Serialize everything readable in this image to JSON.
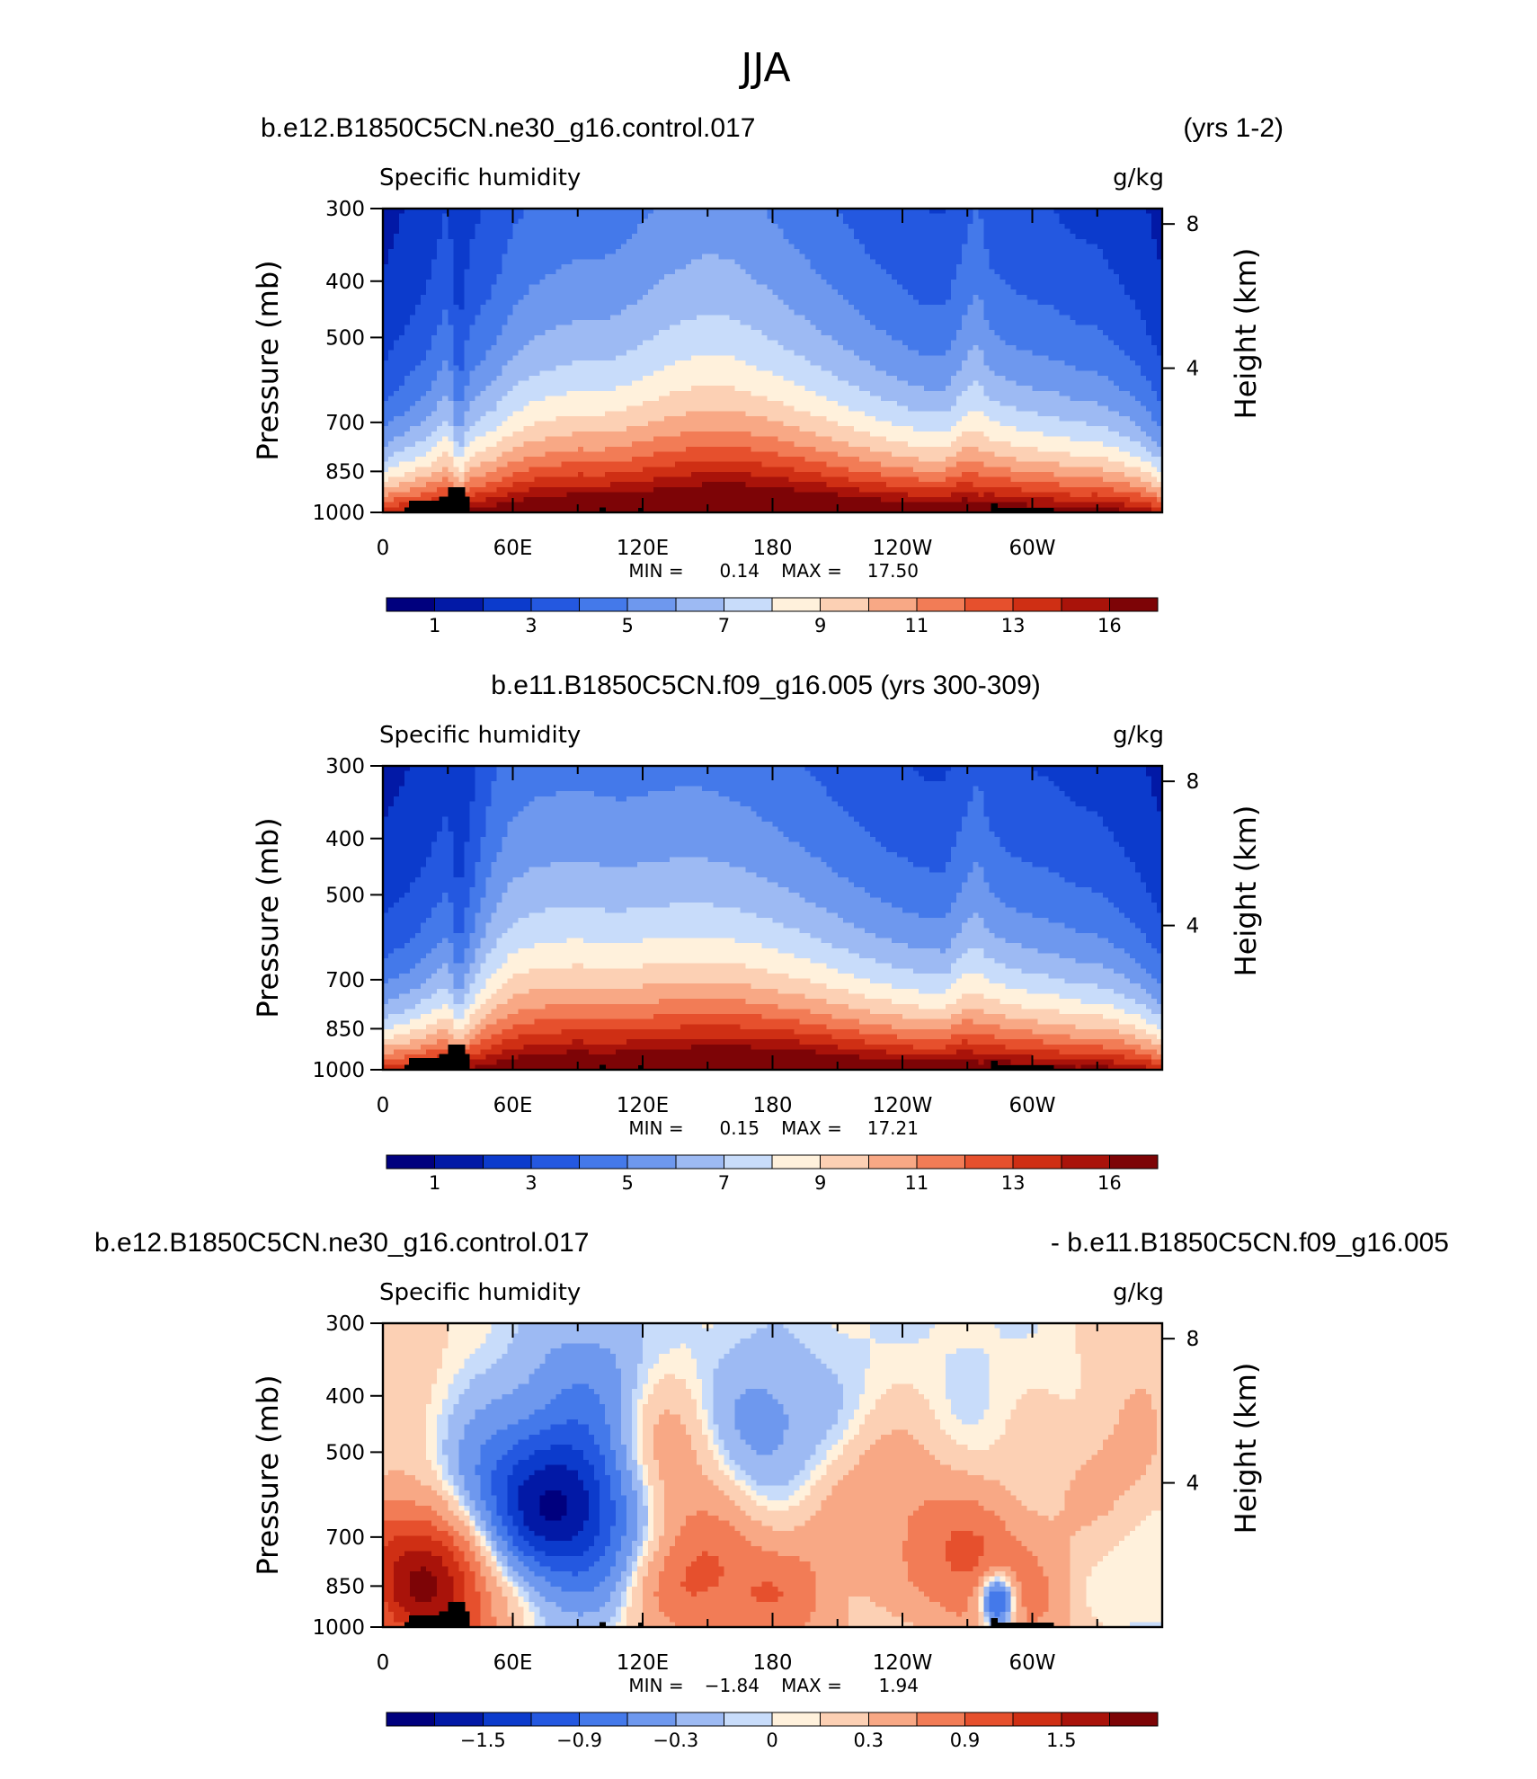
{
  "figure": {
    "season_title": "JJA"
  },
  "colors": {
    "abs_palette": [
      "#00007e",
      "#0219a6",
      "#0c3bcc",
      "#2458e0",
      "#4479ea",
      "#6e98ee",
      "#9dbaf3",
      "#c8dcfa",
      "#fff1dc",
      "#fcd0b4",
      "#f8a885",
      "#f27c56",
      "#e6502d",
      "#cf2f14",
      "#a9130a",
      "#7d0406"
    ],
    "diff_palette": [
      "#00007e",
      "#0219a6",
      "#0c3bcc",
      "#2458e0",
      "#4479ea",
      "#6e98ee",
      "#9dbaf3",
      "#c8dcfa",
      "#fff1dc",
      "#fcd0b4",
      "#f8a885",
      "#f27c56",
      "#e6502d",
      "#cf2f14",
      "#a9130a",
      "#7d0406"
    ],
    "topography": "#000000"
  },
  "panels": [
    {
      "id": "case",
      "title_left": "b.e12.B1850C5CN.ne30_g16.control.017",
      "title_right": "(yrs 1-2)",
      "title_center": "",
      "variable": "Specific humidity",
      "units": "g/kg",
      "stats": {
        "min_label": "MIN =",
        "min": "0.14",
        "max_label": "MAX =",
        "max": "17.50"
      },
      "colorbar_labels": [
        "1",
        "3",
        "5",
        "7",
        "9",
        "11",
        "13",
        "16"
      ],
      "kind": "abs"
    },
    {
      "id": "control",
      "title_left": "",
      "title_right": "",
      "title_center": "b.e11.B1850C5CN.f09_g16.005 (yrs 300-309)",
      "variable": "Specific humidity",
      "units": "g/kg",
      "stats": {
        "min_label": "MIN =",
        "min": "0.15",
        "max_label": "MAX =",
        "max": "17.21"
      },
      "colorbar_labels": [
        "1",
        "3",
        "5",
        "7",
        "9",
        "11",
        "13",
        "16"
      ],
      "kind": "abs"
    },
    {
      "id": "difference",
      "title_left": "b.e12.B1850C5CN.ne30_g16.control.017",
      "title_right": "- b.e11.B1850C5CN.f09_g16.005",
      "title_center": "",
      "variable": "Specific humidity",
      "units": "g/kg",
      "stats": {
        "min_label": "MIN =",
        "min": "−1.84",
        "max_label": "MAX =",
        "max": "1.94"
      },
      "colorbar_labels": [
        "−1.5",
        "−0.9",
        "−0.3",
        "0",
        "0.3",
        "0.9",
        "1.5"
      ],
      "kind": "diff"
    }
  ],
  "chart_data": [
    {
      "type": "heatmap",
      "title": "b.e12.B1850C5CN.ne30_g16.control.017 (yrs 1-2)",
      "subtitle": "Specific humidity",
      "units": "g/kg",
      "xlabel": "",
      "ylabel": "Pressure (mb)",
      "ylabel_right": "Height (km)",
      "x_ticks": [
        "0",
        "60E",
        "120E",
        "180",
        "120W",
        "60W"
      ],
      "y_ticks": [
        "300",
        "400",
        "500",
        "700",
        "850",
        "1000"
      ],
      "y_right_ticks": [
        "8",
        "4"
      ],
      "xlim": [
        0,
        360
      ],
      "ylim": [
        1000,
        300
      ],
      "y_scale": "log",
      "levels": [
        0.5,
        1,
        2,
        3,
        4,
        5,
        6,
        7,
        8,
        9,
        10,
        11,
        12,
        13,
        14,
        16
      ],
      "profile": {
        "lon": [
          0,
          10,
          20,
          30,
          35,
          40,
          50,
          60,
          70,
          80,
          90,
          100,
          110,
          120,
          130,
          140,
          150,
          160,
          170,
          180,
          190,
          200,
          210,
          220,
          230,
          240,
          250,
          260,
          270,
          275,
          280,
          290,
          300,
          310,
          320,
          330,
          340,
          350,
          360
        ],
        "surface_q": [
          13.0,
          13.5,
          14.0,
          14.5,
          13.5,
          14.5,
          15.0,
          15.5,
          16.0,
          16.2,
          16.4,
          16.3,
          16.4,
          16.6,
          16.8,
          17.0,
          17.2,
          17.3,
          17.3,
          17.2,
          17.0,
          16.8,
          16.5,
          16.2,
          16.0,
          15.8,
          15.6,
          15.8,
          16.0,
          15.0,
          15.6,
          15.4,
          15.2,
          15.0,
          14.6,
          14.8,
          14.5,
          14.0,
          13.0
        ],
        "scale_height_mb": [
          240,
          270,
          300,
          360,
          270,
          330,
          360,
          410,
          430,
          440,
          450,
          450,
          460,
          480,
          500,
          510,
          520,
          510,
          490,
          470,
          450,
          430,
          410,
          390,
          370,
          355,
          340,
          335,
          400,
          440,
          380,
          360,
          350,
          345,
          335,
          325,
          305,
          280,
          240
        ]
      },
      "stats": {
        "min": 0.14,
        "max": 17.5
      }
    },
    {
      "type": "heatmap",
      "title": "b.e11.B1850C5CN.f09_g16.005 (yrs 300-309)",
      "subtitle": "Specific humidity",
      "units": "g/kg",
      "xlabel": "",
      "ylabel": "Pressure (mb)",
      "ylabel_right": "Height (km)",
      "x_ticks": [
        "0",
        "60E",
        "120E",
        "180",
        "120W",
        "60W"
      ],
      "y_ticks": [
        "300",
        "400",
        "500",
        "700",
        "850",
        "1000"
      ],
      "y_right_ticks": [
        "8",
        "4"
      ],
      "xlim": [
        0,
        360
      ],
      "ylim": [
        1000,
        300
      ],
      "y_scale": "log",
      "levels": [
        0.5,
        1,
        2,
        3,
        4,
        5,
        6,
        7,
        8,
        9,
        10,
        11,
        12,
        13,
        14,
        16
      ],
      "profile": {
        "lon": [
          0,
          10,
          20,
          30,
          35,
          40,
          50,
          60,
          70,
          80,
          90,
          100,
          110,
          120,
          130,
          140,
          150,
          160,
          170,
          180,
          190,
          200,
          210,
          220,
          230,
          240,
          250,
          260,
          270,
          275,
          280,
          290,
          300,
          310,
          320,
          330,
          340,
          350,
          360
        ],
        "surface_q": [
          12.8,
          13.2,
          13.8,
          14.2,
          13.2,
          14.2,
          14.8,
          15.4,
          15.8,
          16.0,
          16.2,
          16.1,
          16.2,
          16.4,
          16.6,
          16.8,
          16.9,
          17.0,
          17.0,
          16.9,
          16.8,
          16.6,
          16.3,
          16.0,
          15.8,
          15.6,
          15.4,
          15.6,
          15.8,
          14.8,
          15.4,
          15.2,
          15.0,
          14.8,
          14.4,
          14.6,
          14.3,
          13.8,
          12.8
        ],
        "scale_height_mb": [
          245,
          265,
          290,
          330,
          265,
          320,
          420,
          470,
          480,
          480,
          480,
          475,
          470,
          470,
          470,
          470,
          465,
          455,
          445,
          430,
          415,
          400,
          385,
          370,
          355,
          345,
          335,
          330,
          390,
          430,
          375,
          355,
          345,
          340,
          330,
          320,
          300,
          278,
          245
        ]
      },
      "stats": {
        "min": 0.15,
        "max": 17.21
      }
    },
    {
      "type": "heatmap",
      "title": "b.e12.B1850C5CN.ne30_g16.control.017 - b.e11.B1850C5CN.f09_g16.005",
      "subtitle": "Specific humidity",
      "units": "g/kg",
      "xlabel": "",
      "ylabel": "Pressure (mb)",
      "ylabel_right": "Height (km)",
      "x_ticks": [
        "0",
        "60E",
        "120E",
        "180",
        "120W",
        "60W"
      ],
      "y_ticks": [
        "300",
        "400",
        "500",
        "700",
        "850",
        "1000"
      ],
      "y_right_ticks": [
        "8",
        "4"
      ],
      "xlim": [
        0,
        360
      ],
      "ylim": [
        1000,
        300
      ],
      "y_scale": "log",
      "levels": [
        -1.8,
        -1.5,
        -1.2,
        -0.9,
        -0.6,
        -0.3,
        -0.1,
        0,
        0.1,
        0.3,
        0.6,
        0.9,
        1.2,
        1.5,
        1.8
      ],
      "anomalies": [
        {
          "lon": 10,
          "p": 760,
          "amp": 0.9
        },
        {
          "lon": 28,
          "p": 880,
          "amp": 1.3
        },
        {
          "lon": 55,
          "p": 620,
          "amp": -0.7
        },
        {
          "lon": 80,
          "p": 600,
          "amp": -1.0
        },
        {
          "lon": 100,
          "p": 680,
          "amp": -0.8
        },
        {
          "lon": 95,
          "p": 400,
          "amp": -0.5
        },
        {
          "lon": 140,
          "p": 820,
          "amp": 0.9
        },
        {
          "lon": 130,
          "p": 500,
          "amp": 0.6
        },
        {
          "lon": 185,
          "p": 890,
          "amp": 0.7
        },
        {
          "lon": 175,
          "p": 460,
          "amp": -0.5
        },
        {
          "lon": 230,
          "p": 600,
          "amp": 0.5
        },
        {
          "lon": 270,
          "p": 780,
          "amp": 0.8
        },
        {
          "lon": 284,
          "p": 900,
          "amp": -1.8
        },
        {
          "lon": 305,
          "p": 880,
          "amp": 0.7
        },
        {
          "lon": 320,
          "p": 800,
          "amp": -0.4
        },
        {
          "lon": 335,
          "p": 560,
          "amp": 0.4
        },
        {
          "lon": 350,
          "p": 340,
          "amp": 0.2
        },
        {
          "lon": 5,
          "p": 320,
          "amp": 0.2
        }
      ],
      "stats": {
        "min": -1.84,
        "max": 1.94
      }
    }
  ],
  "topography": {
    "comment_free": true,
    "blocks": [
      {
        "lon0": 10,
        "lon1": 18,
        "p_top": 980
      },
      {
        "lon0": 12,
        "lon1": 26,
        "p_top": 955
      },
      {
        "lon0": 26,
        "lon1": 40,
        "p_top": 940
      },
      {
        "lon0": 30,
        "lon1": 38,
        "p_top": 905
      },
      {
        "lon0": 100,
        "lon1": 103,
        "p_top": 980
      },
      {
        "lon0": 118,
        "lon1": 120,
        "p_top": 982
      },
      {
        "lon0": 281,
        "lon1": 284,
        "p_top": 965
      },
      {
        "lon0": 282,
        "lon1": 310,
        "p_top": 983
      }
    ]
  }
}
